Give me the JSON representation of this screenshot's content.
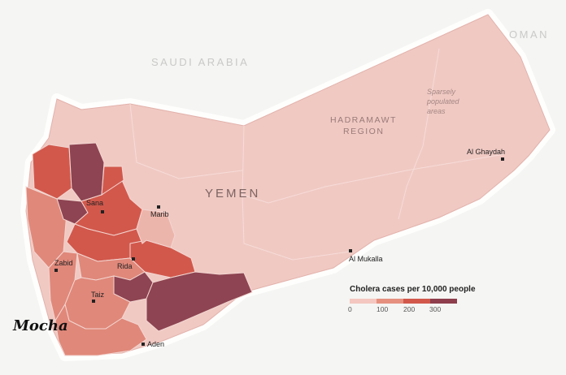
{
  "map": {
    "country_labels": {
      "saudi_arabia": "SAUDI ARABIA",
      "oman": "OMAN",
      "yemen": "YEMEN"
    },
    "region_label": {
      "line1": "HADRAMAWT",
      "line2": "REGION"
    },
    "note": {
      "line1": "Sparsely",
      "line2": "populated",
      "line3": "areas"
    },
    "cities": {
      "sana": "Sana",
      "marib": "Marib",
      "rida": "Rida",
      "zabid": "Zabid",
      "taiz": "Taiz",
      "aden": "Aden",
      "al_mukalla": "Al Mukalla",
      "al_ghaydah": "Al Ghaydah"
    },
    "annotation": "Mocha",
    "legend": {
      "title": "Cholera cases per 10,000 people",
      "ticks": [
        "0",
        "100",
        "200",
        "300"
      ],
      "colors": [
        "#f4c7c0",
        "#e6907f",
        "#d2584c",
        "#8e3e4c"
      ]
    },
    "fill_colors": {
      "base": "#f0c9c3",
      "light": "#ecb5ab",
      "medium": "#e0887a",
      "strong": "#d2584c",
      "dark": "#8e4452"
    }
  }
}
